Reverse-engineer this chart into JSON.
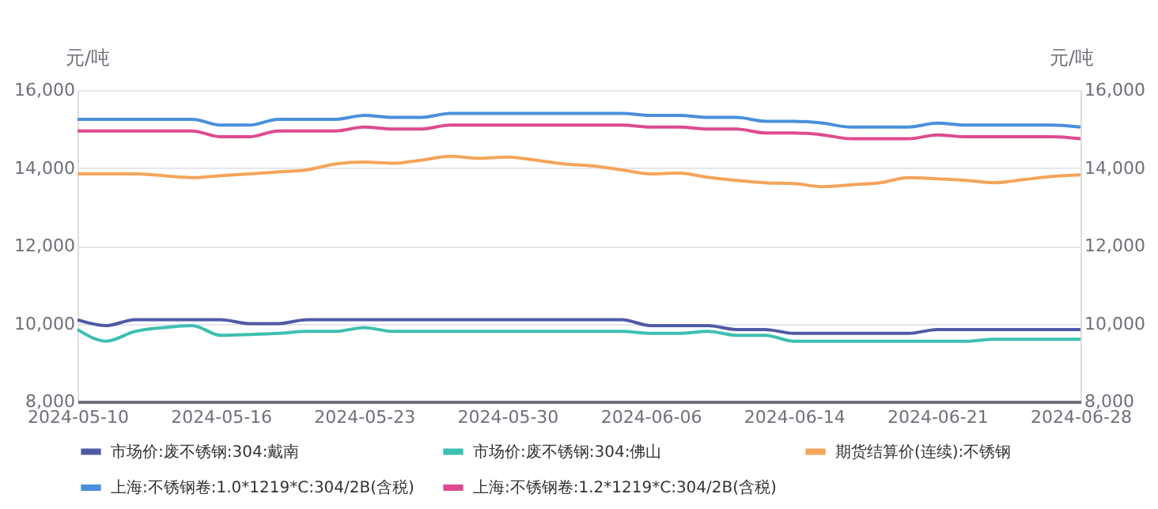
{
  "chart_data": {
    "type": "line",
    "categories": [
      "2024-05-10",
      null,
      null,
      null,
      null,
      "2024-05-16",
      null,
      null,
      null,
      null,
      "2024-05-23",
      null,
      null,
      null,
      null,
      "2024-05-30",
      null,
      null,
      null,
      null,
      "2024-06-06",
      null,
      null,
      null,
      null,
      "2024-06-14",
      null,
      null,
      null,
      null,
      "2024-06-21",
      null,
      null,
      null,
      null,
      "2024-06-28"
    ],
    "ylabel": "元/吨",
    "y2label": "元/吨",
    "ylim": [
      8000,
      16000
    ],
    "yticks": [
      {
        "value": 8000,
        "label": "8,000"
      },
      {
        "value": 10000,
        "label": "10,000"
      },
      {
        "value": 12000,
        "label": "12,000"
      },
      {
        "value": 14000,
        "label": "14,000"
      },
      {
        "value": 16000,
        "label": "16,000"
      }
    ],
    "y2lim": [
      8000,
      16000
    ],
    "y2ticks": [
      {
        "value": 8000,
        "label": "8,000"
      },
      {
        "value": 10000,
        "label": "10,000"
      },
      {
        "value": 12000,
        "label": "12,000"
      },
      {
        "value": 14000,
        "label": "14,000"
      },
      {
        "value": 16000,
        "label": "16,000"
      }
    ],
    "grid": "y",
    "legend": "bottom",
    "marker": "none",
    "line_style": "solid",
    "series": [
      {
        "name": "市场价:废不锈钢:304:戴南",
        "color": "#4f5aa6",
        "values": [
          10100,
          9950,
          10100,
          10100,
          10100,
          10100,
          10000,
          10000,
          10100,
          10100,
          10100,
          10100,
          10100,
          10100,
          10100,
          10100,
          10100,
          10100,
          10100,
          10100,
          9950,
          9950,
          9950,
          9850,
          9850,
          9750,
          9750,
          9750,
          9750,
          9750,
          9850,
          9850,
          9850,
          9850,
          9850,
          9850
        ]
      },
      {
        "name": "市场价:废不锈钢:304:佛山",
        "color": "#3dbfb0",
        "values": [
          9850,
          9550,
          9800,
          9900,
          9950,
          9700,
          9720,
          9750,
          9800,
          9800,
          9900,
          9800,
          9800,
          9800,
          9800,
          9800,
          9800,
          9800,
          9800,
          9800,
          9750,
          9750,
          9800,
          9700,
          9700,
          9550,
          9550,
          9550,
          9550,
          9550,
          9550,
          9550,
          9600,
          9600,
          9600,
          9600
        ]
      },
      {
        "name": "期货结算价(连续):不锈钢",
        "color": "#f5a45a",
        "values": [
          13850,
          13850,
          13850,
          13800,
          13750,
          13800,
          13850,
          13900,
          13950,
          14100,
          14150,
          14120,
          14200,
          14300,
          14250,
          14280,
          14200,
          14100,
          14050,
          13950,
          13850,
          13870,
          13760,
          13680,
          13620,
          13600,
          13520,
          13570,
          13620,
          13750,
          13720,
          13680,
          13620,
          13700,
          13780,
          13820
        ]
      },
      {
        "name": "上海:不锈钢卷:1.0*1219*C:304/2B(含税)",
        "color": "#4a8fdc",
        "values": [
          15250,
          15250,
          15250,
          15250,
          15250,
          15100,
          15100,
          15250,
          15250,
          15250,
          15350,
          15300,
          15300,
          15400,
          15400,
          15400,
          15400,
          15400,
          15400,
          15400,
          15350,
          15350,
          15300,
          15300,
          15200,
          15200,
          15150,
          15050,
          15050,
          15050,
          15150,
          15100,
          15100,
          15100,
          15100,
          15050
        ]
      },
      {
        "name": "上海:不锈钢卷:1.2*1219*C:304/2B(含税)",
        "color": "#de4a8f",
        "values": [
          14950,
          14950,
          14950,
          14950,
          14950,
          14800,
          14800,
          14950,
          14950,
          14950,
          15050,
          15000,
          15000,
          15100,
          15100,
          15100,
          15100,
          15100,
          15100,
          15100,
          15050,
          15050,
          15000,
          15000,
          14900,
          14900,
          14850,
          14750,
          14750,
          14750,
          14850,
          14800,
          14800,
          14800,
          14800,
          14750
        ]
      }
    ]
  }
}
